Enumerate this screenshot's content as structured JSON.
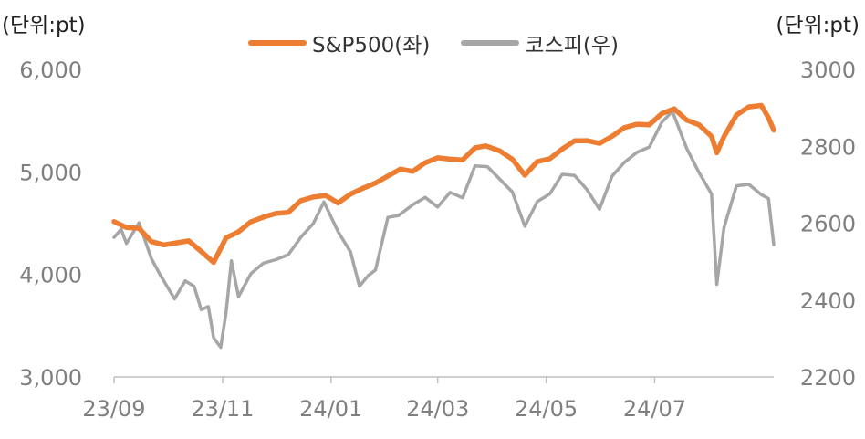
{
  "units": {
    "left": "(단위:pt)",
    "right": "(단위:pt)"
  },
  "legend": [
    {
      "label": "S&P500(좌)",
      "color": "#ed7d31"
    },
    {
      "label": "코스피(우)",
      "color": "#a6a6a6"
    }
  ],
  "colors": {
    "axis": "#bfbfbf",
    "tick_text": "#7f7f7f",
    "sp500": "#ed7d31",
    "kospi": "#a6a6a6"
  },
  "chart_data": {
    "type": "line",
    "x_ticks": [
      "23/09",
      "23/11",
      "24/01",
      "24/03",
      "24/05",
      "24/07"
    ],
    "x_range": [
      "2023-09-01",
      "2024-09-06"
    ],
    "y_left": {
      "range": [
        3000,
        6000
      ],
      "ticks": [
        "3,000",
        "4,000",
        "5,000",
        "6,000"
      ]
    },
    "y_right": {
      "range": [
        2200,
        3000
      ],
      "ticks": [
        "2200",
        "2400",
        "2600",
        "2800",
        "3000"
      ]
    },
    "grid": false,
    "legend_position": "top-center",
    "series": [
      {
        "name": "S&P500(좌)",
        "axis": "left",
        "color": "#ed7d31",
        "points": [
          [
            "2023-09-01",
            4515
          ],
          [
            "2023-09-08",
            4457
          ],
          [
            "2023-09-15",
            4450
          ],
          [
            "2023-09-22",
            4320
          ],
          [
            "2023-09-29",
            4288
          ],
          [
            "2023-10-06",
            4308
          ],
          [
            "2023-10-13",
            4327
          ],
          [
            "2023-10-20",
            4224
          ],
          [
            "2023-10-27",
            4117
          ],
          [
            "2023-11-03",
            4358
          ],
          [
            "2023-11-10",
            4415
          ],
          [
            "2023-11-17",
            4514
          ],
          [
            "2023-11-24",
            4559
          ],
          [
            "2023-12-01",
            4594
          ],
          [
            "2023-12-08",
            4604
          ],
          [
            "2023-12-15",
            4719
          ],
          [
            "2023-12-22",
            4755
          ],
          [
            "2023-12-29",
            4770
          ],
          [
            "2024-01-05",
            4697
          ],
          [
            "2024-01-12",
            4784
          ],
          [
            "2024-01-19",
            4840
          ],
          [
            "2024-01-26",
            4891
          ],
          [
            "2024-02-02",
            4959
          ],
          [
            "2024-02-09",
            5027
          ],
          [
            "2024-02-16",
            5005
          ],
          [
            "2024-02-23",
            5089
          ],
          [
            "2024-03-01",
            5137
          ],
          [
            "2024-03-08",
            5124
          ],
          [
            "2024-03-15",
            5117
          ],
          [
            "2024-03-22",
            5234
          ],
          [
            "2024-03-28",
            5254
          ],
          [
            "2024-04-05",
            5204
          ],
          [
            "2024-04-12",
            5123
          ],
          [
            "2024-04-19",
            4967
          ],
          [
            "2024-04-26",
            5100
          ],
          [
            "2024-05-03",
            5128
          ],
          [
            "2024-05-10",
            5223
          ],
          [
            "2024-05-17",
            5303
          ],
          [
            "2024-05-24",
            5305
          ],
          [
            "2024-05-31",
            5278
          ],
          [
            "2024-06-07",
            5347
          ],
          [
            "2024-06-14",
            5432
          ],
          [
            "2024-06-21",
            5465
          ],
          [
            "2024-06-28",
            5460
          ],
          [
            "2024-07-05",
            5567
          ],
          [
            "2024-07-12",
            5615
          ],
          [
            "2024-07-19",
            5505
          ],
          [
            "2024-07-26",
            5459
          ],
          [
            "2024-08-02",
            5346
          ],
          [
            "2024-08-05",
            5186
          ],
          [
            "2024-08-09",
            5344
          ],
          [
            "2024-08-16",
            5554
          ],
          [
            "2024-08-23",
            5634
          ],
          [
            "2024-08-30",
            5648
          ],
          [
            "2024-09-03",
            5528
          ],
          [
            "2024-09-06",
            5408
          ]
        ]
      },
      {
        "name": "코스피(우)",
        "axis": "right",
        "color": "#a6a6a6",
        "points": [
          [
            "2023-09-01",
            2563
          ],
          [
            "2023-09-05",
            2584
          ],
          [
            "2023-09-08",
            2547
          ],
          [
            "2023-09-15",
            2601
          ],
          [
            "2023-09-22",
            2508
          ],
          [
            "2023-09-27",
            2465
          ],
          [
            "2023-10-05",
            2403
          ],
          [
            "2023-10-11",
            2450
          ],
          [
            "2023-10-16",
            2436
          ],
          [
            "2023-10-20",
            2375
          ],
          [
            "2023-10-24",
            2383
          ],
          [
            "2023-10-27",
            2302
          ],
          [
            "2023-10-31",
            2277
          ],
          [
            "2023-11-03",
            2368
          ],
          [
            "2023-11-06",
            2502
          ],
          [
            "2023-11-10",
            2409
          ],
          [
            "2023-11-17",
            2469
          ],
          [
            "2023-11-24",
            2496
          ],
          [
            "2023-12-01",
            2505
          ],
          [
            "2023-12-08",
            2518
          ],
          [
            "2023-12-15",
            2563
          ],
          [
            "2023-12-22",
            2599
          ],
          [
            "2023-12-28",
            2655
          ],
          [
            "2024-01-05",
            2578
          ],
          [
            "2024-01-12",
            2525
          ],
          [
            "2024-01-17",
            2436
          ],
          [
            "2024-01-22",
            2464
          ],
          [
            "2024-01-26",
            2478
          ],
          [
            "2024-02-02",
            2615
          ],
          [
            "2024-02-08",
            2620
          ],
          [
            "2024-02-16",
            2648
          ],
          [
            "2024-02-23",
            2667
          ],
          [
            "2024-03-01",
            2642
          ],
          [
            "2024-03-08",
            2680
          ],
          [
            "2024-03-15",
            2666
          ],
          [
            "2024-03-22",
            2749
          ],
          [
            "2024-03-29",
            2747
          ],
          [
            "2024-04-05",
            2714
          ],
          [
            "2024-04-12",
            2681
          ],
          [
            "2024-04-19",
            2592
          ],
          [
            "2024-04-26",
            2656
          ],
          [
            "2024-05-03",
            2676
          ],
          [
            "2024-05-10",
            2727
          ],
          [
            "2024-05-17",
            2724
          ],
          [
            "2024-05-24",
            2687
          ],
          [
            "2024-05-31",
            2636
          ],
          [
            "2024-06-07",
            2722
          ],
          [
            "2024-06-14",
            2758
          ],
          [
            "2024-06-21",
            2784
          ],
          [
            "2024-06-28",
            2798
          ],
          [
            "2024-07-05",
            2862
          ],
          [
            "2024-07-11",
            2891
          ],
          [
            "2024-07-19",
            2795
          ],
          [
            "2024-07-26",
            2731
          ],
          [
            "2024-08-02",
            2676
          ],
          [
            "2024-08-05",
            2441
          ],
          [
            "2024-08-09",
            2588
          ],
          [
            "2024-08-16",
            2697
          ],
          [
            "2024-08-23",
            2701
          ],
          [
            "2024-08-30",
            2674
          ],
          [
            "2024-09-03",
            2664
          ],
          [
            "2024-09-06",
            2544
          ]
        ]
      }
    ]
  }
}
